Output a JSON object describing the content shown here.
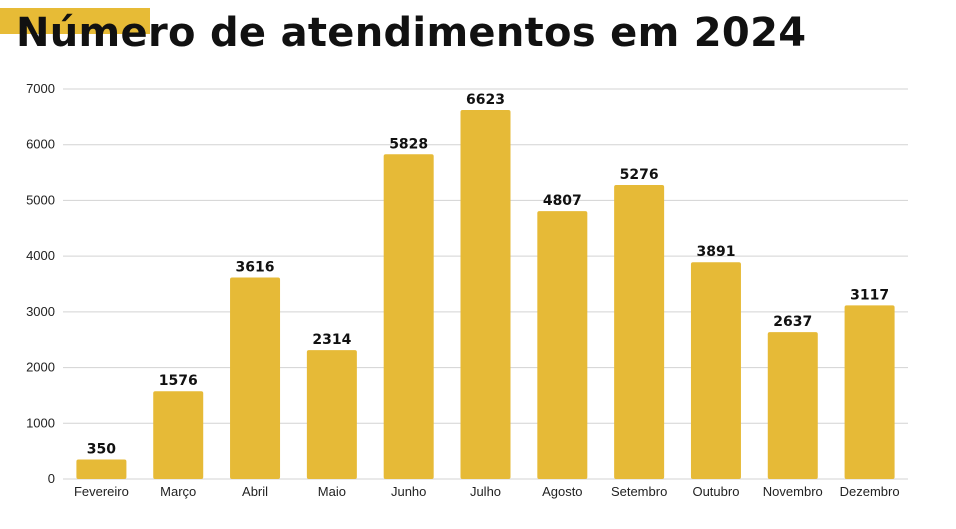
{
  "colors": {
    "accent": "#E7BB36",
    "bar": "#E6BA37",
    "grid": "#D3D3D3",
    "title": "#111111"
  },
  "chart_data": {
    "type": "bar",
    "title": "Número de atendimentos em 2024",
    "xlabel": "",
    "ylabel": "",
    "categories": [
      "Fevereiro",
      "Março",
      "Abril",
      "Maio",
      "Junho",
      "Julho",
      "Agosto",
      "Setembro",
      "Outubro",
      "Novembro",
      "Dezembro"
    ],
    "values": [
      350,
      1576,
      3616,
      2314,
      5828,
      6623,
      4807,
      5276,
      3891,
      2637,
      3117
    ],
    "ylim": [
      0,
      7000
    ],
    "yticks": [
      0,
      1000,
      2000,
      3000,
      4000,
      5000,
      6000,
      7000
    ],
    "grid": true,
    "data_labels": true,
    "legend": "none"
  }
}
